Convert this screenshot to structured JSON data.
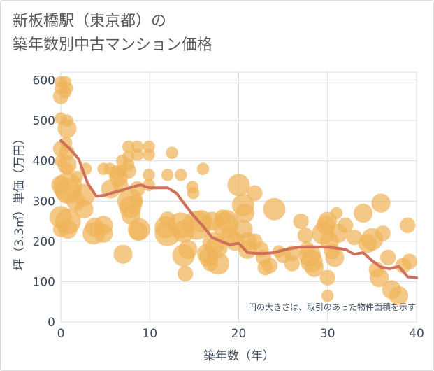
{
  "chart_data": {
    "type": "scatter",
    "title_lines": [
      "新板橋駅（東京都）の",
      "築年数別中古マンション価格"
    ],
    "xlabel": "築年数（年）",
    "ylabel": "坪（3.3㎡）単価（万円）",
    "xlim": [
      0,
      40
    ],
    "ylim": [
      0,
      620
    ],
    "xticks": [
      0,
      10,
      20,
      30,
      40
    ],
    "yticks": [
      0,
      100,
      200,
      300,
      400,
      500,
      600
    ],
    "grid": true,
    "annotation": "円の大きさは、取引のあった物件面積を示す",
    "colors": {
      "bubble": "#f0b45a",
      "line": "#d0705a",
      "grid": "#d8dde6",
      "axis_text": "#3d4a5c"
    },
    "trend_line": {
      "x": [
        0,
        1,
        2,
        3,
        4,
        5,
        6,
        7,
        8,
        9,
        10,
        11,
        12,
        13,
        14,
        15,
        16,
        17,
        18,
        19,
        20,
        21,
        22,
        23,
        24,
        25,
        26,
        27,
        28,
        29,
        30,
        31,
        32,
        33,
        34,
        35,
        36,
        37,
        38,
        39,
        40
      ],
      "y": [
        450,
        430,
        405,
        345,
        312,
        315,
        322,
        328,
        335,
        340,
        333,
        333,
        333,
        320,
        290,
        262,
        238,
        210,
        200,
        192,
        195,
        172,
        170,
        170,
        172,
        178,
        183,
        186,
        186,
        186,
        186,
        183,
        180,
        168,
        172,
        152,
        136,
        132,
        138,
        112,
        110
      ]
    },
    "points": [
      {
        "x": 0,
        "y": 595,
        "s": 2
      },
      {
        "x": 0,
        "y": 580,
        "s": 2
      },
      {
        "x": 0,
        "y": 560,
        "s": 3
      },
      {
        "x": 0,
        "y": 505,
        "s": 2
      },
      {
        "x": 0,
        "y": 430,
        "s": 3
      },
      {
        "x": 0,
        "y": 400,
        "s": 2
      },
      {
        "x": 0,
        "y": 340,
        "s": 4
      },
      {
        "x": 0,
        "y": 260,
        "s": 5
      },
      {
        "x": 0,
        "y": 230,
        "s": 3
      },
      {
        "x": 0.5,
        "y": 595,
        "s": 2
      },
      {
        "x": 0.7,
        "y": 580,
        "s": 2
      },
      {
        "x": 0.5,
        "y": 570,
        "s": 2
      },
      {
        "x": 0.7,
        "y": 500,
        "s": 2
      },
      {
        "x": 0.7,
        "y": 480,
        "s": 4
      },
      {
        "x": 0.6,
        "y": 445,
        "s": 2
      },
      {
        "x": 0.7,
        "y": 420,
        "s": 3
      },
      {
        "x": 0.7,
        "y": 390,
        "s": 4
      },
      {
        "x": 0.7,
        "y": 380,
        "s": 2
      },
      {
        "x": 0.8,
        "y": 335,
        "s": 7
      },
      {
        "x": 0.8,
        "y": 325,
        "s": 6
      },
      {
        "x": 0.8,
        "y": 250,
        "s": 6
      },
      {
        "x": 0.8,
        "y": 230,
        "s": 4
      },
      {
        "x": 1.8,
        "y": 360,
        "s": 2
      },
      {
        "x": 1.7,
        "y": 300,
        "s": 4
      },
      {
        "x": 2.8,
        "y": 380,
        "s": 2
      },
      {
        "x": 2.6,
        "y": 315,
        "s": 5
      },
      {
        "x": 2.6,
        "y": 280,
        "s": 4
      },
      {
        "x": 3.8,
        "y": 235,
        "s": 4
      },
      {
        "x": 3.7,
        "y": 220,
        "s": 5
      },
      {
        "x": 4.8,
        "y": 380,
        "s": 2
      },
      {
        "x": 4.8,
        "y": 240,
        "s": 4
      },
      {
        "x": 4.8,
        "y": 220,
        "s": 4
      },
      {
        "x": 5.6,
        "y": 330,
        "s": 4
      },
      {
        "x": 5.5,
        "y": 380,
        "s": 2
      },
      {
        "x": 6.3,
        "y": 370,
        "s": 3
      },
      {
        "x": 6.5,
        "y": 360,
        "s": 4
      },
      {
        "x": 6.7,
        "y": 340,
        "s": 3
      },
      {
        "x": 6.8,
        "y": 375,
        "s": 2
      },
      {
        "x": 6.9,
        "y": 400,
        "s": 2
      },
      {
        "x": 7,
        "y": 168,
        "s": 4
      },
      {
        "x": 7.6,
        "y": 435,
        "s": 2
      },
      {
        "x": 7.6,
        "y": 410,
        "s": 2
      },
      {
        "x": 7.6,
        "y": 390,
        "s": 2
      },
      {
        "x": 7.6,
        "y": 375,
        "s": 3
      },
      {
        "x": 7.8,
        "y": 300,
        "s": 6
      },
      {
        "x": 7.8,
        "y": 285,
        "s": 5
      },
      {
        "x": 7.9,
        "y": 265,
        "s": 4
      },
      {
        "x": 8.6,
        "y": 435,
        "s": 2
      },
      {
        "x": 8.6,
        "y": 415,
        "s": 2
      },
      {
        "x": 8.6,
        "y": 330,
        "s": 3
      },
      {
        "x": 8.5,
        "y": 300,
        "s": 2
      },
      {
        "x": 8.8,
        "y": 230,
        "s": 5
      },
      {
        "x": 8.7,
        "y": 225,
        "s": 4
      },
      {
        "x": 9.9,
        "y": 435,
        "s": 2
      },
      {
        "x": 9.9,
        "y": 415,
        "s": 2
      },
      {
        "x": 9.9,
        "y": 365,
        "s": 2
      },
      {
        "x": 9.9,
        "y": 340,
        "s": 2
      },
      {
        "x": 12,
        "y": 365,
        "s": 2
      },
      {
        "x": 12.5,
        "y": 420,
        "s": 2
      },
      {
        "x": 12,
        "y": 255,
        "s": 3
      },
      {
        "x": 11.8,
        "y": 235,
        "s": 5
      },
      {
        "x": 12,
        "y": 220,
        "s": 6
      },
      {
        "x": 13.5,
        "y": 365,
        "s": 2
      },
      {
        "x": 13.5,
        "y": 240,
        "s": 6
      },
      {
        "x": 13.8,
        "y": 225,
        "s": 5
      },
      {
        "x": 13.8,
        "y": 165,
        "s": 5
      },
      {
        "x": 14.3,
        "y": 180,
        "s": 4
      },
      {
        "x": 14,
        "y": 120,
        "s": 3
      },
      {
        "x": 14.8,
        "y": 335,
        "s": 2
      },
      {
        "x": 14.9,
        "y": 320,
        "s": 2
      },
      {
        "x": 15.3,
        "y": 240,
        "s": 7
      },
      {
        "x": 15.8,
        "y": 250,
        "s": 5
      },
      {
        "x": 16,
        "y": 380,
        "s": 2
      },
      {
        "x": 16.4,
        "y": 170,
        "s": 4
      },
      {
        "x": 16.6,
        "y": 160,
        "s": 4
      },
      {
        "x": 16.8,
        "y": 145,
        "s": 3
      },
      {
        "x": 17,
        "y": 250,
        "s": 4
      },
      {
        "x": 17.2,
        "y": 195,
        "s": 5
      },
      {
        "x": 17.5,
        "y": 185,
        "s": 5
      },
      {
        "x": 17.7,
        "y": 145,
        "s": 5
      },
      {
        "x": 18.2,
        "y": 260,
        "s": 3
      },
      {
        "x": 18.5,
        "y": 240,
        "s": 6
      },
      {
        "x": 18.7,
        "y": 250,
        "s": 5
      },
      {
        "x": 19,
        "y": 210,
        "s": 4
      },
      {
        "x": 19.6,
        "y": 200,
        "s": 4
      },
      {
        "x": 20,
        "y": 340,
        "s": 5
      },
      {
        "x": 20.5,
        "y": 290,
        "s": 5
      },
      {
        "x": 20.7,
        "y": 270,
        "s": 4
      },
      {
        "x": 20.5,
        "y": 230,
        "s": 4
      },
      {
        "x": 21,
        "y": 200,
        "s": 4
      },
      {
        "x": 21,
        "y": 180,
        "s": 4
      },
      {
        "x": 21.8,
        "y": 320,
        "s": 3
      },
      {
        "x": 21.8,
        "y": 200,
        "s": 3
      },
      {
        "x": 22.5,
        "y": 180,
        "s": 3
      },
      {
        "x": 22.8,
        "y": 160,
        "s": 3
      },
      {
        "x": 23,
        "y": 135,
        "s": 3
      },
      {
        "x": 23.5,
        "y": 140,
        "s": 3
      },
      {
        "x": 24,
        "y": 280,
        "s": 5
      },
      {
        "x": 24.5,
        "y": 175,
        "s": 2
      },
      {
        "x": 25,
        "y": 165,
        "s": 3
      },
      {
        "x": 26,
        "y": 170,
        "s": 3
      },
      {
        "x": 26,
        "y": 145,
        "s": 3
      },
      {
        "x": 27,
        "y": 250,
        "s": 3
      },
      {
        "x": 27.5,
        "y": 215,
        "s": 3
      },
      {
        "x": 27.7,
        "y": 180,
        "s": 3
      },
      {
        "x": 28,
        "y": 165,
        "s": 5
      },
      {
        "x": 28.2,
        "y": 150,
        "s": 5
      },
      {
        "x": 28.5,
        "y": 135,
        "s": 4
      },
      {
        "x": 29.5,
        "y": 220,
        "s": 5
      },
      {
        "x": 29.8,
        "y": 240,
        "s": 4
      },
      {
        "x": 30,
        "y": 250,
        "s": 4
      },
      {
        "x": 30.2,
        "y": 200,
        "s": 4
      },
      {
        "x": 30.5,
        "y": 175,
        "s": 3
      },
      {
        "x": 30.8,
        "y": 160,
        "s": 4
      },
      {
        "x": 31,
        "y": 270,
        "s": 2
      },
      {
        "x": 31.2,
        "y": 220,
        "s": 4
      },
      {
        "x": 30,
        "y": 110,
        "s": 3
      },
      {
        "x": 30,
        "y": 65,
        "s": 2
      },
      {
        "x": 32,
        "y": 240,
        "s": 3
      },
      {
        "x": 33,
        "y": 210,
        "s": 3
      },
      {
        "x": 34,
        "y": 270,
        "s": 4
      },
      {
        "x": 34.5,
        "y": 195,
        "s": 4
      },
      {
        "x": 35,
        "y": 205,
        "s": 5
      },
      {
        "x": 35.5,
        "y": 130,
        "s": 3
      },
      {
        "x": 35.8,
        "y": 110,
        "s": 4
      },
      {
        "x": 36,
        "y": 295,
        "s": 4
      },
      {
        "x": 36.2,
        "y": 220,
        "s": 3
      },
      {
        "x": 36.8,
        "y": 160,
        "s": 3
      },
      {
        "x": 37.2,
        "y": 80,
        "s": 4
      },
      {
        "x": 38,
        "y": 65,
        "s": 4
      },
      {
        "x": 38.5,
        "y": 140,
        "s": 3
      },
      {
        "x": 39,
        "y": 240,
        "s": 3
      },
      {
        "x": 39.2,
        "y": 150,
        "s": 3
      }
    ]
  }
}
